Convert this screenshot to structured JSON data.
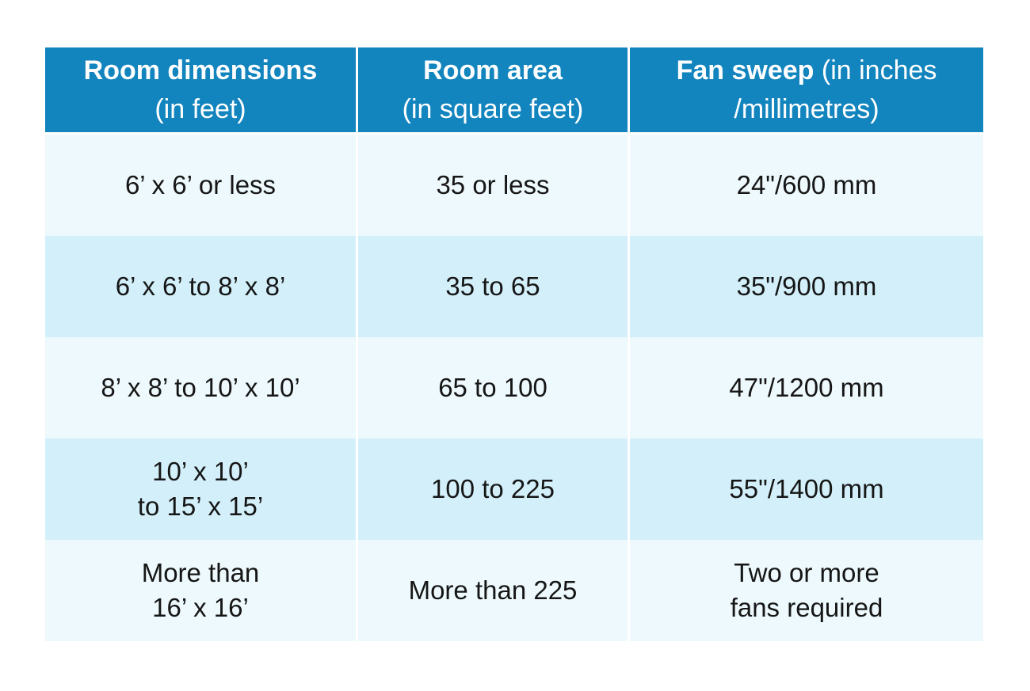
{
  "table": {
    "header": [
      {
        "title": "Room dimensions",
        "subtitle": "(in feet)"
      },
      {
        "title": "Room area",
        "subtitle": "(in square feet)"
      },
      {
        "title": "Fan sweep",
        "subtitle": "(in inches /millimetres)"
      }
    ],
    "rows": [
      [
        "6’ x 6’ or less",
        "35 or less",
        "24\"/600 mm"
      ],
      [
        "6’ x 6’ to 8’ x 8’",
        "35 to 65",
        "35\"/900 mm"
      ],
      [
        "8’ x 8’ to 10’ x 10’",
        "65 to 100",
        "47\"/1200 mm"
      ],
      [
        "10’ x 10’\nto 15’ x 15’",
        "100 to 225",
        "55\"/1400 mm"
      ],
      [
        "More than\n16’ x 16’",
        "More than 225",
        "Two or more\nfans required"
      ]
    ],
    "colors": {
      "header_bg": "#1284be",
      "header_text": "#ffffff",
      "row_pale": "#edf9fc",
      "row_shaded": "#d3f0fa",
      "body_text": "#161616",
      "separator": "#ffffff"
    }
  },
  "chart_data": {
    "type": "table",
    "columns": [
      "Room dimensions (in feet)",
      "Room area (in square feet)",
      "Fan sweep (in inches /millimetres)"
    ],
    "rows": [
      [
        "6’ x 6’ or less",
        "35 or less",
        "24\"/600 mm"
      ],
      [
        "6’ x 6’ to 8’ x 8’",
        "35 to 65",
        "35\"/900 mm"
      ],
      [
        "8’ x 8’ to 10’ x 10’",
        "65 to 100",
        "47\"/1200 mm"
      ],
      [
        "10’ x 10’ to 15’ x 15’",
        "100 to 225",
        "55\"/1400 mm"
      ],
      [
        "More than 16’ x 16’",
        "More than 225",
        "Two or more fans required"
      ]
    ]
  }
}
